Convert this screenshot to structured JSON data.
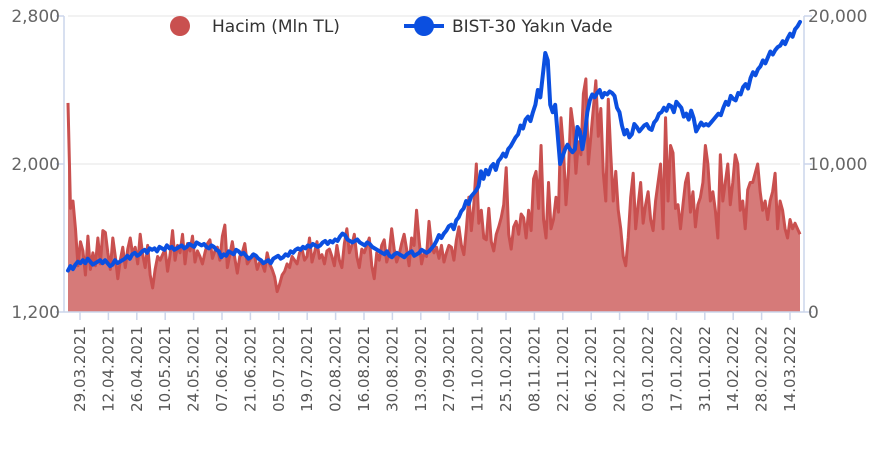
{
  "chart_data": {
    "type": "area",
    "title": "",
    "x_tick_labels": [
      "29.03.2021",
      "12.04.2021",
      "26.04.2021",
      "10.05.2021",
      "24.05.2021",
      "07.06.2021",
      "21.06.2021",
      "05.07.2021",
      "19.07.2021",
      "02.08.2021",
      "16.08.2021",
      "30.08.2021",
      "13.09.2021",
      "27.09.2021",
      "11.10.2021",
      "25.10.2021",
      "08.11.2021",
      "22.11.2021",
      "06.12.2021",
      "20.12.2021",
      "03.01.2022",
      "17.01.2022",
      "31.01.2022",
      "14.02.2022",
      "28.02.2022",
      "14.03.2022"
    ],
    "y_left": {
      "ticks": [
        "1,200",
        "2,000",
        "2,800"
      ],
      "lim": [
        1200,
        2800
      ]
    },
    "y_right": {
      "ticks": [
        "0",
        "10,000",
        "20,000"
      ],
      "lim": [
        0,
        20000
      ]
    },
    "legend_position": "top",
    "series": [
      {
        "name": "Hacim (Mln TL)",
        "type": "area",
        "axis": "left",
        "color": "#c9504f",
        "fill": "#d67a79",
        "legend_marker": "circle",
        "values": [
          2330,
          1760,
          1800,
          1650,
          1450,
          1580,
          1530,
          1400,
          1610,
          1430,
          1520,
          1450,
          1600,
          1460,
          1640,
          1630,
          1520,
          1430,
          1600,
          1500,
          1380,
          1480,
          1550,
          1440,
          1540,
          1600,
          1510,
          1550,
          1460,
          1620,
          1510,
          1440,
          1560,
          1400,
          1330,
          1430,
          1500,
          1480,
          1510,
          1540,
          1420,
          1510,
          1640,
          1480,
          1560,
          1520,
          1620,
          1460,
          1570,
          1530,
          1610,
          1470,
          1530,
          1500,
          1460,
          1520,
          1570,
          1590,
          1490,
          1530,
          1550,
          1480,
          1610,
          1670,
          1440,
          1510,
          1580,
          1490,
          1410,
          1500,
          1520,
          1570,
          1460,
          1480,
          1510,
          1500,
          1430,
          1470,
          1460,
          1420,
          1520,
          1460,
          1430,
          1390,
          1310,
          1350,
          1400,
          1420,
          1460,
          1440,
          1500,
          1480,
          1460,
          1520,
          1540,
          1480,
          1500,
          1600,
          1470,
          1520,
          1580,
          1490,
          1510,
          1460,
          1530,
          1540,
          1500,
          1450,
          1560,
          1480,
          1440,
          1570,
          1650,
          1520,
          1560,
          1620,
          1500,
          1440,
          1540,
          1520,
          1560,
          1600,
          1450,
          1380,
          1520,
          1480,
          1560,
          1590,
          1470,
          1520,
          1650,
          1540,
          1470,
          1510,
          1570,
          1620,
          1540,
          1450,
          1600,
          1560,
          1750,
          1590,
          1460,
          1520,
          1500,
          1690,
          1560,
          1520,
          1550,
          1490,
          1560,
          1470,
          1520,
          1560,
          1550,
          1480,
          1590,
          1660,
          1560,
          1510,
          1650,
          1820,
          1640,
          1780,
          2000,
          1680,
          1750,
          1600,
          1590,
          1760,
          1580,
          1530,
          1620,
          1660,
          1710,
          1780,
          1980,
          1620,
          1540,
          1660,
          1690,
          1620,
          1730,
          1710,
          1600,
          1750,
          1640,
          1920,
          1960,
          1760,
          2100,
          1700,
          1600,
          1900,
          1650,
          1700,
          1820,
          1740,
          2250,
          2080,
          1780,
          1960,
          2300,
          2200,
          1950,
          2120,
          2050,
          2380,
          2460,
          2000,
          2150,
          2300,
          2450,
          2150,
          2300,
          1950,
          1800,
          2350,
          2050,
          1800,
          1960,
          1750,
          1650,
          1500,
          1450,
          1600,
          1820,
          1950,
          1650,
          1780,
          1900,
          1680,
          1780,
          1850,
          1700,
          1640,
          1800,
          1900,
          2000,
          1650,
          2250,
          1800,
          2100,
          2060,
          1760,
          1780,
          1650,
          1780,
          1900,
          1950,
          1740,
          1850,
          1660,
          1780,
          1820,
          1900,
          2100,
          2000,
          1800,
          1850,
          1750,
          1600,
          2050,
          1800,
          1900,
          2000,
          1780,
          1900,
          2050,
          2000,
          1750,
          1800,
          1650,
          1860,
          1900,
          1900,
          1950,
          2000,
          1850,
          1750,
          1800,
          1700,
          1800,
          1850,
          1950,
          1650,
          1800,
          1750,
          1650,
          1600,
          1700,
          1650,
          1680,
          1650,
          1620
        ]
      },
      {
        "name": "BIST-30 Yakın Vade",
        "type": "line",
        "axis": "right",
        "color": "#0b4fe0",
        "legend_marker": "circle-line",
        "values": [
          2800,
          3100,
          2900,
          3200,
          3400,
          3300,
          3500,
          3300,
          3600,
          3400,
          3200,
          3300,
          3400,
          3500,
          3300,
          3500,
          3300,
          3100,
          3200,
          3500,
          3300,
          3400,
          3500,
          3600,
          3800,
          3600,
          3900,
          4000,
          3800,
          3900,
          4100,
          4200,
          4000,
          4300,
          4200,
          4300,
          4100,
          4400,
          4300,
          4200,
          4500,
          4300,
          4400,
          4200,
          4300,
          4400,
          4500,
          4300,
          4400,
          4600,
          4500,
          4400,
          4700,
          4600,
          4500,
          4600,
          4400,
          4300,
          4500,
          4400,
          4200,
          4100,
          3700,
          3900,
          3800,
          4100,
          4000,
          3900,
          4200,
          4100,
          3900,
          4000,
          3800,
          3600,
          3700,
          3900,
          3800,
          3600,
          3500,
          3300,
          3400,
          3500,
          3300,
          3600,
          3700,
          3800,
          3600,
          3700,
          3900,
          3800,
          4100,
          4000,
          4200,
          4300,
          4200,
          4400,
          4300,
          4500,
          4400,
          4600,
          4500,
          4400,
          4500,
          4700,
          4800,
          4600,
          4800,
          4700,
          4900,
          4800,
          5100,
          5300,
          5200,
          4900,
          4800,
          4700,
          4800,
          4900,
          4700,
          4600,
          4500,
          4700,
          4600,
          4400,
          4300,
          4200,
          4100,
          4000,
          3900,
          4100,
          3800,
          3700,
          3900,
          4000,
          3900,
          3800,
          3700,
          3900,
          4000,
          4100,
          3800,
          3900,
          4000,
          4200,
          4100,
          4000,
          4100,
          4300,
          4500,
          4800,
          5200,
          5000,
          5300,
          5500,
          5800,
          5900,
          5600,
          6200,
          6400,
          6800,
          7000,
          7500,
          7300,
          7800,
          8000,
          8200,
          8500,
          9500,
          9000,
          9600,
          9300,
          9800,
          10000,
          9600,
          10200,
          10400,
          10700,
          10500,
          11000,
          11200,
          11500,
          11800,
          12000,
          12600,
          12400,
          13000,
          13200,
          12900,
          13500,
          14000,
          15000,
          14500,
          16000,
          17500,
          17000,
          14000,
          13500,
          14000,
          12000,
          10000,
          10500,
          11000,
          11300,
          11000,
          10800,
          11000,
          12500,
          12200,
          11000,
          12000,
          13500,
          14300,
          14700,
          14500,
          14800,
          15000,
          14500,
          14800,
          14700,
          14900,
          14800,
          14600,
          13800,
          13500,
          12600,
          12000,
          12300,
          11800,
          12000,
          12700,
          12500,
          12200,
          12400,
          12600,
          12700,
          12400,
          12300,
          12800,
          13000,
          13400,
          13500,
          13800,
          13600,
          14000,
          13900,
          13500,
          14200,
          14000,
          13800,
          13200,
          13400,
          13000,
          13600,
          13100,
          12200,
          12500,
          12800,
          12600,
          12700,
          12600,
          12800,
          13000,
          13200,
          13400,
          13300,
          13800,
          14200,
          14000,
          14600,
          14400,
          14300,
          14800,
          14700,
          15200,
          15400,
          15100,
          15800,
          16200,
          16000,
          16400,
          16600,
          17000,
          16800,
          17200,
          17600,
          17400,
          17700,
          17900,
          18000,
          18300,
          18100,
          18500,
          18800,
          18600,
          19100,
          19300,
          19600
        ]
      }
    ]
  }
}
